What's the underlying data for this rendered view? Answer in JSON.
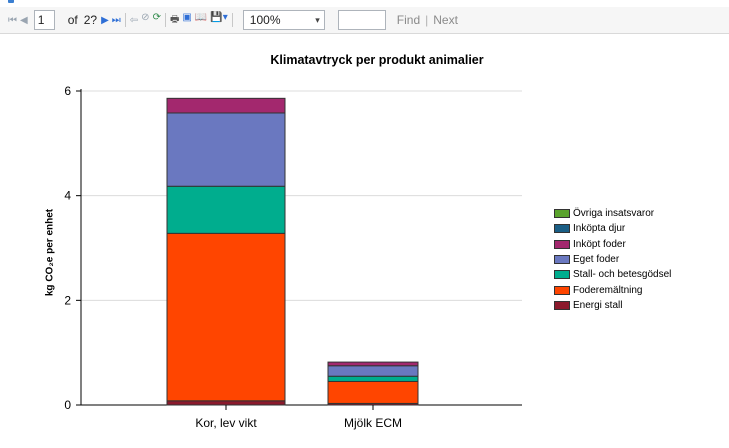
{
  "toolbar": {
    "page_current": "1",
    "page_of": "of",
    "page_total": "2?",
    "zoom": "100%",
    "find_label": "Find",
    "next_label": "Next"
  },
  "chart_data": {
    "type": "bar",
    "stacked": true,
    "title": "Klimatavtryck per produkt animalier",
    "xlabel": "",
    "ylabel": "kg CO₂e per enhet",
    "ylim": [
      0,
      6
    ],
    "yticks": [
      0,
      2,
      4,
      6
    ],
    "grid": true,
    "legend_position": "right",
    "categories": [
      "Kor, lev vikt",
      "Mjölk  ECM"
    ],
    "series": [
      {
        "name": "Energi stall",
        "color": "#8b1a2c",
        "values": [
          0.08,
          0.03
        ]
      },
      {
        "name": "Foderemältning",
        "color": "#ff4500",
        "values": [
          3.2,
          0.42
        ]
      },
      {
        "name": "Stall- och betesgödsel",
        "color": "#00ad8e",
        "values": [
          0.9,
          0.1
        ]
      },
      {
        "name": "Eget foder",
        "color": "#6a78c0",
        "values": [
          1.4,
          0.2
        ]
      },
      {
        "name": "Inköpt foder",
        "color": "#a3286e",
        "values": [
          0.28,
          0.07
        ]
      },
      {
        "name": "Inköpta djur",
        "color": "#1a5e85",
        "values": [
          0.0,
          0.0
        ]
      },
      {
        "name": "Övriga insatsvaror",
        "color": "#5aa32d",
        "values": [
          0.0,
          0.0
        ]
      }
    ]
  }
}
